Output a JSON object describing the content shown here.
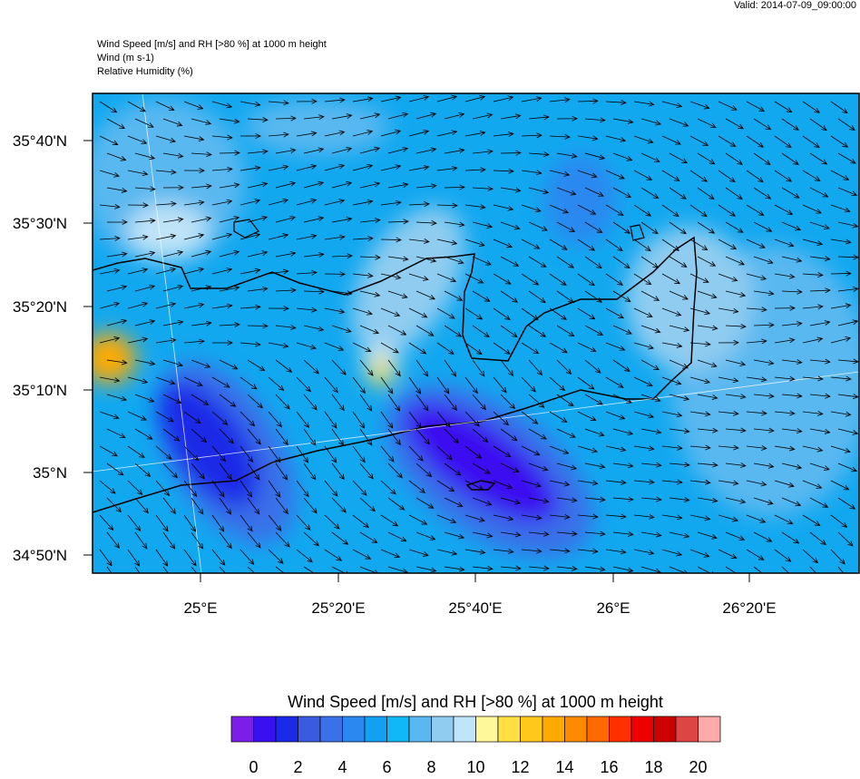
{
  "valid": "Valid: 2014-07-09_09:00:00",
  "header": {
    "lines": [
      "Wind Speed [m/s] and RH [>80 %] at 1000 m height",
      "Wind   (m s-1)",
      "Relative Humidity   (%)"
    ]
  },
  "map": {
    "lat_labels": [
      "35°40'N",
      "35°30'N",
      "35°20'N",
      "35°10'N",
      "35°N",
      "34°50'N"
    ],
    "lon_labels": [
      "25°E",
      "25°20'E",
      "25°40'E",
      "26°E",
      "26°20'E"
    ]
  },
  "colorbar": {
    "title": "Wind Speed [m/s] and RH [>80 %] at 1000 m height",
    "colors": [
      "#7a1ee8",
      "#3a10f0",
      "#1a2ae8",
      "#3a5ae0",
      "#3a70e8",
      "#2a88f0",
      "#12a0f0",
      "#10b8f8",
      "#5ab8f0",
      "#90ccf0",
      "#c0e4f8",
      "#fff89a",
      "#ffe040",
      "#ffc81a",
      "#ffaa00",
      "#ff8a00",
      "#ff6a00",
      "#ff3000",
      "#ee0000",
      "#cc0000",
      "#dd4444",
      "#ffaaaa"
    ],
    "ticks": [
      0,
      2,
      4,
      6,
      8,
      10,
      12,
      14,
      16,
      18,
      20
    ]
  }
}
